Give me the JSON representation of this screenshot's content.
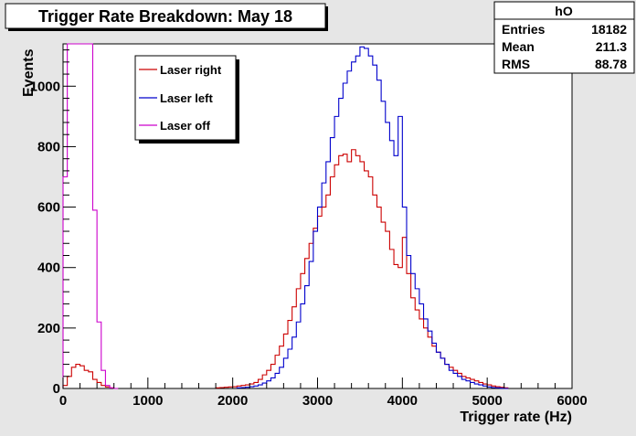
{
  "chart_data": {
    "type": "line",
    "title": "Trigger Rate Breakdown: May 18",
    "xlabel": "Trigger rate (Hz)",
    "ylabel": "Events",
    "xlim": [
      0,
      6000
    ],
    "ylim": [
      0,
      1140
    ],
    "xticks": [
      0,
      1000,
      2000,
      3000,
      4000,
      5000,
      6000
    ],
    "yticks": [
      0,
      200,
      400,
      600,
      800,
      1000
    ],
    "grid": false,
    "legend_position": "top-left",
    "stats_box": {
      "name": "hO",
      "rows": [
        {
          "label": "Entries",
          "value": "18182"
        },
        {
          "label": "Mean",
          "value": "211.3"
        },
        {
          "label": "RMS",
          "value": "88.78"
        }
      ]
    },
    "bin_width": 50,
    "series": [
      {
        "name": "Laser right",
        "color": "#cc0000",
        "x": [
          0,
          50,
          100,
          150,
          200,
          250,
          300,
          350,
          400,
          450,
          500,
          550,
          1800,
          1850,
          1900,
          1950,
          2000,
          2050,
          2100,
          2150,
          2200,
          2250,
          2300,
          2350,
          2400,
          2450,
          2500,
          2550,
          2600,
          2650,
          2700,
          2750,
          2800,
          2850,
          2900,
          2950,
          3000,
          3050,
          3100,
          3150,
          3200,
          3250,
          3300,
          3350,
          3400,
          3450,
          3500,
          3550,
          3600,
          3650,
          3700,
          3750,
          3800,
          3850,
          3900,
          3950,
          4000,
          4050,
          4100,
          4150,
          4200,
          4250,
          4300,
          4350,
          4400,
          4450,
          4500,
          4550,
          4600,
          4650,
          4700,
          4750,
          4800,
          4850,
          4900,
          4950,
          5000,
          5050,
          5100,
          5150,
          5200
        ],
        "y": [
          10,
          40,
          70,
          80,
          75,
          60,
          55,
          30,
          20,
          10,
          5,
          2,
          2,
          3,
          4,
          5,
          6,
          8,
          10,
          12,
          15,
          20,
          30,
          45,
          60,
          80,
          110,
          140,
          180,
          225,
          270,
          330,
          380,
          430,
          480,
          530,
          570,
          600,
          640,
          700,
          740,
          770,
          775,
          750,
          790,
          770,
          750,
          720,
          700,
          640,
          600,
          550,
          520,
          460,
          410,
          400,
          500,
          380,
          300,
          260,
          230,
          200,
          170,
          140,
          120,
          100,
          80,
          70,
          60,
          50,
          40,
          35,
          30,
          25,
          20,
          15,
          12,
          8,
          6,
          4,
          2
        ]
      },
      {
        "name": "Laser left",
        "color": "#0000cc",
        "x": [
          2050,
          2100,
          2150,
          2200,
          2250,
          2300,
          2350,
          2400,
          2450,
          2500,
          2550,
          2600,
          2650,
          2700,
          2750,
          2800,
          2850,
          2900,
          2950,
          3000,
          3050,
          3100,
          3150,
          3200,
          3250,
          3300,
          3350,
          3400,
          3450,
          3500,
          3550,
          3600,
          3650,
          3700,
          3750,
          3800,
          3850,
          3900,
          3950,
          4000,
          4050,
          4100,
          4150,
          4200,
          4250,
          4300,
          4350,
          4400,
          4450,
          4500,
          4550,
          4600,
          4650,
          4700,
          4750,
          4800,
          4850,
          4900,
          4950,
          5000,
          5050,
          5100,
          5150,
          5200
        ],
        "y": [
          2,
          3,
          4,
          6,
          8,
          12,
          18,
          25,
          35,
          50,
          70,
          100,
          130,
          170,
          220,
          280,
          340,
          420,
          520,
          600,
          680,
          750,
          830,
          900,
          960,
          1010,
          1050,
          1080,
          1100,
          1130,
          1125,
          1100,
          1070,
          1020,
          950,
          880,
          820,
          770,
          900,
          600,
          440,
          380,
          330,
          280,
          230,
          190,
          150,
          120,
          100,
          80,
          60,
          50,
          40,
          30,
          25,
          20,
          15,
          12,
          8,
          5,
          3,
          2,
          1,
          0
        ]
      },
      {
        "name": "Laser off",
        "color": "#cc00cc",
        "x": [
          0,
          50,
          100,
          150,
          200,
          250,
          300,
          350,
          400,
          450,
          500,
          550,
          600
        ],
        "y": [
          700,
          1140,
          1140,
          1140,
          1140,
          1140,
          1140,
          590,
          220,
          60,
          10,
          2,
          0
        ]
      }
    ]
  }
}
